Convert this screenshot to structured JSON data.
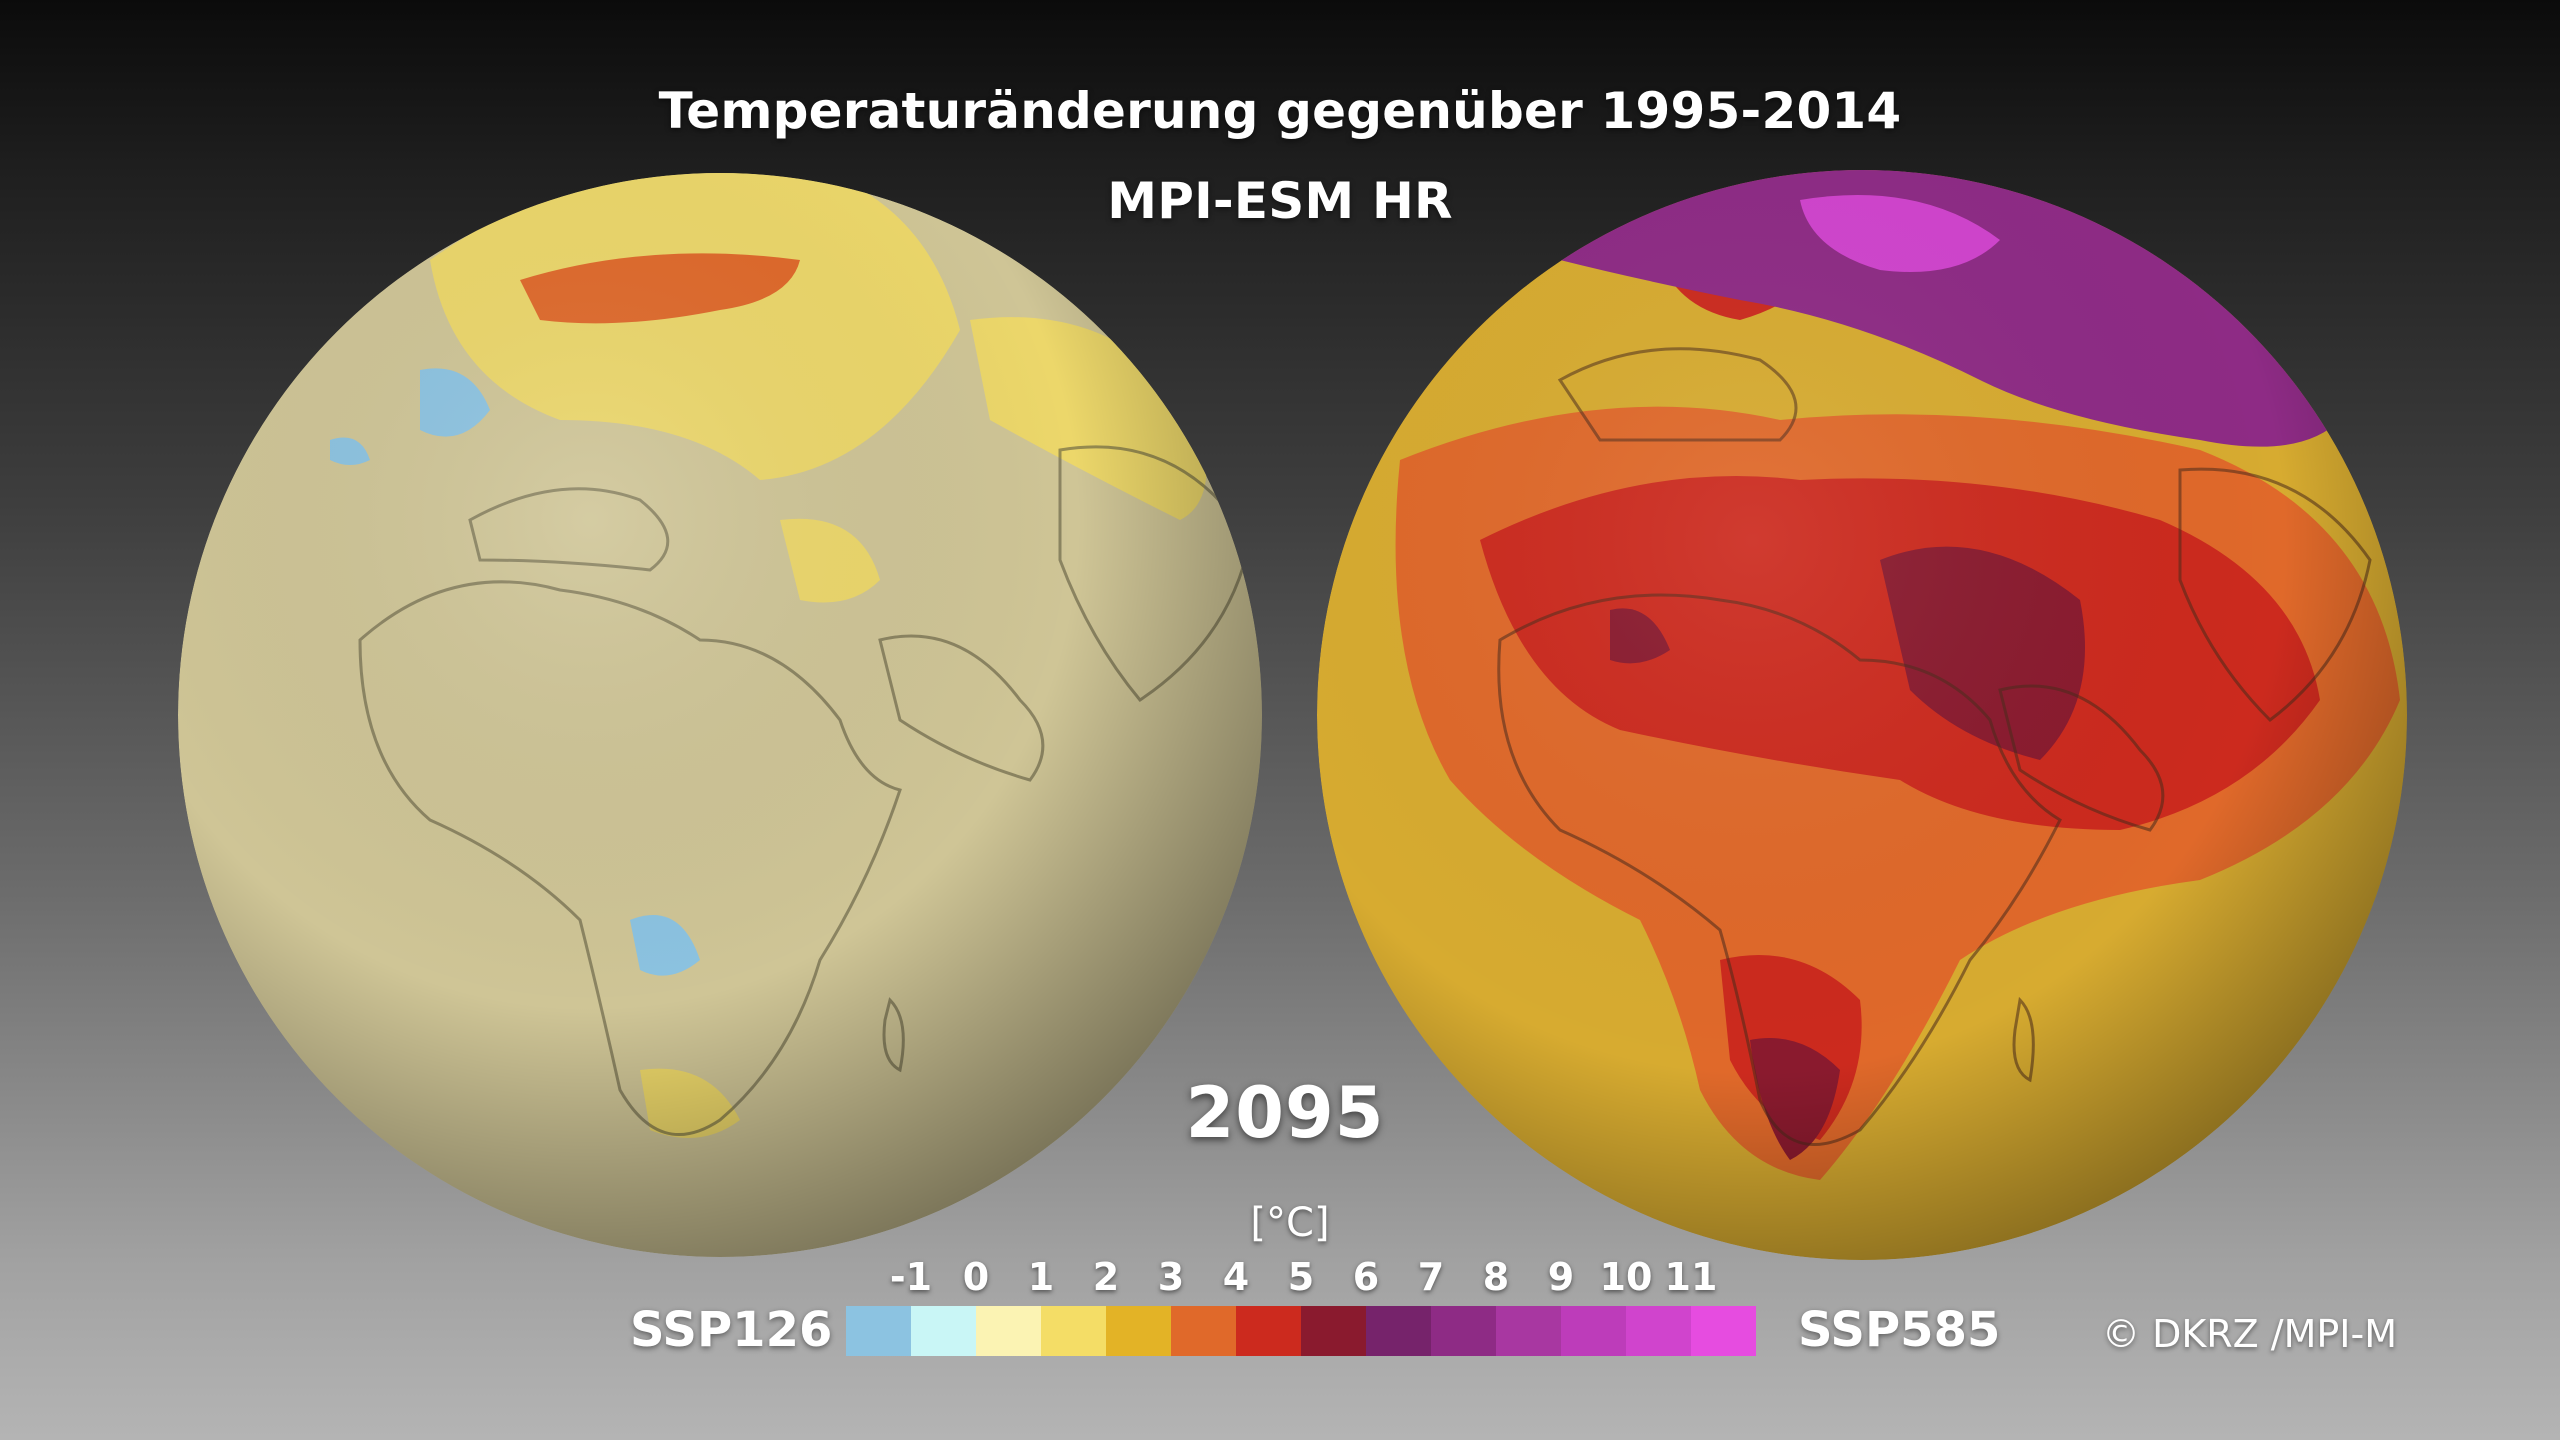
{
  "title": "Temperaturänderung gegenüber 1995-2014",
  "subtitle": "MPI-ESM HR",
  "year": "2095",
  "unit_label": "[°C]",
  "scenario_left": "SSP126",
  "scenario_right": "SSP585",
  "copyright": "© DKRZ /MPI-M",
  "colorbar": {
    "ticks": [
      "-1",
      "0",
      "1",
      "2",
      "3",
      "4",
      "5",
      "6",
      "7",
      "8",
      "9",
      "10",
      "11"
    ],
    "colors": [
      "#8cc3e1",
      "#c9f6f6",
      "#fbf3b3",
      "#f4dd66",
      "#e3b326",
      "#e0692a",
      "#cc2a1e",
      "#8a1a2e",
      "#76236b",
      "#8e2b85",
      "#a837a1",
      "#bd3cba",
      "#d044cd",
      "#e64ce0"
    ]
  },
  "globes": [
    {
      "scenario": "SSP126",
      "colors": {
        "base": "#cfc596",
        "warm": "#ecd76a",
        "hot": "#e0692a",
        "cool": "#8cc3e1"
      }
    },
    {
      "scenario": "SSP585",
      "colors": {
        "base": "#d7ab30",
        "warm": "#e0692a",
        "hot": "#cc2a1e",
        "extreme": "#8a1a2e",
        "purple": "#8e2b85",
        "magenta": "#d044cd"
      }
    }
  ]
}
